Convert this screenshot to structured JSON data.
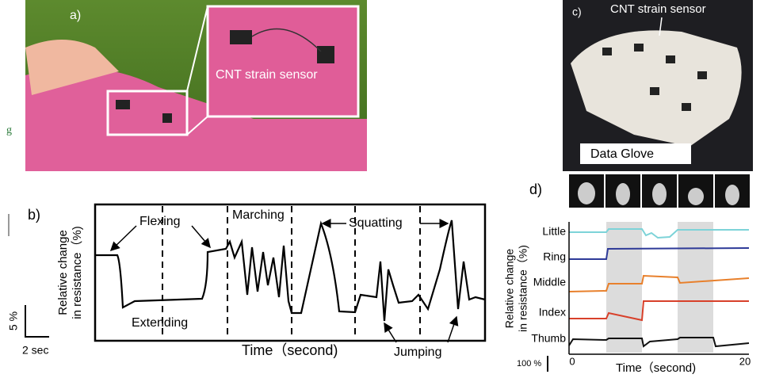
{
  "fragment": "g",
  "panel_a": {
    "label": "a)",
    "callout": "CNT strain sensor"
  },
  "panel_c": {
    "label": "c)",
    "callout": "CNT strain sensor",
    "caption": "Data Glove"
  },
  "panel_b": {
    "label": "b)",
    "y_label": [
      "Relative change",
      "in resistance（%)"
    ],
    "annotations": {
      "flexing": "Flexing",
      "extending": "Extending",
      "marching": "Marching",
      "squatting": "Squatting",
      "jumping": "Jumping"
    },
    "x_label": "Time（second)",
    "scale_y": "5 %",
    "scale_x": "2 sec"
  },
  "panel_d": {
    "label": "d)",
    "fingers": [
      "Little",
      "Ring",
      "Middle",
      "Index",
      "Thumb"
    ],
    "y_label": [
      "Relative change",
      "in resistance（%)"
    ],
    "scale_y": "100 %",
    "x_label": "Time（second)",
    "x_ticks": [
      0,
      20
    ]
  }
}
